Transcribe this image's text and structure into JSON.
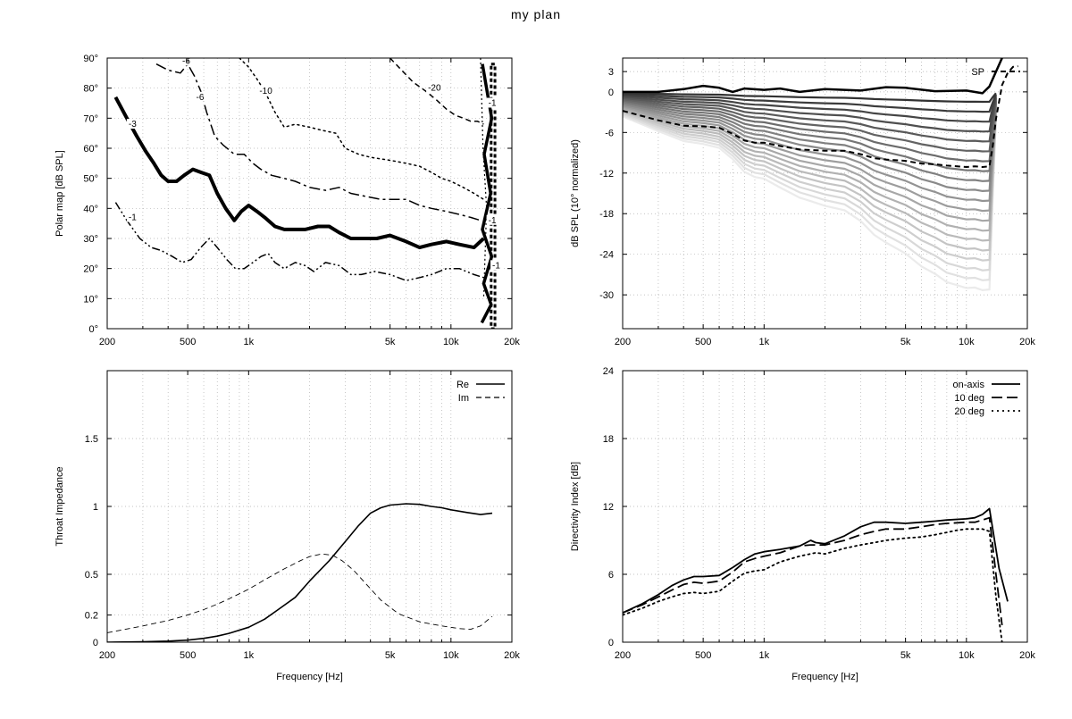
{
  "title": "my plan",
  "chart_data": [
    {
      "id": "polar",
      "type": "contour",
      "ylabel": "Polar map [dB SPL]",
      "xlabel": "",
      "xscale": "log",
      "xlim": [
        200,
        20000
      ],
      "ylim": [
        0,
        90
      ],
      "xticks": [
        {
          "v": 200,
          "label": "200"
        },
        {
          "v": 500,
          "label": "500"
        },
        {
          "v": 1000,
          "label": "1k"
        },
        {
          "v": 5000,
          "label": "5k"
        },
        {
          "v": 10000,
          "label": "10k"
        },
        {
          "v": 20000,
          "label": "20k"
        }
      ],
      "yticks": [
        {
          "v": 0,
          "label": "0°"
        },
        {
          "v": 10,
          "label": "10°"
        },
        {
          "v": 20,
          "label": "20°"
        },
        {
          "v": 30,
          "label": "30°"
        },
        {
          "v": 40,
          "label": "40°"
        },
        {
          "v": 50,
          "label": "50°"
        },
        {
          "v": 60,
          "label": "60°"
        },
        {
          "v": 70,
          "label": "70°"
        },
        {
          "v": 80,
          "label": "80°"
        },
        {
          "v": 90,
          "label": "90°"
        }
      ],
      "grid": true,
      "series": [
        {
          "name": "-1",
          "style": "dashdotdot",
          "width": 1.5,
          "x": [
            220,
            250,
            290,
            330,
            370,
            420,
            470,
            520,
            580,
            640,
            700,
            780,
            860,
            950,
            1050,
            1150,
            1250,
            1350,
            1500,
            1700,
            1900,
            2100,
            2400,
            2800,
            3200,
            3600,
            4200,
            5000,
            6000,
            7000,
            8000,
            9500,
            11000,
            13000,
            14500
          ],
          "y": [
            42,
            36,
            30,
            27,
            26,
            24,
            22,
            23,
            27,
            30,
            27,
            23,
            20,
            20,
            22,
            24,
            25,
            22,
            20,
            22,
            21,
            19,
            22,
            21,
            18,
            18,
            19,
            18,
            16,
            17,
            18,
            20,
            20,
            18,
            17
          ]
        },
        {
          "name": "-3",
          "style": "solid",
          "width": 4,
          "x": [
            220,
            250,
            280,
            310,
            340,
            370,
            400,
            440,
            480,
            530,
            580,
            640,
            700,
            770,
            850,
            920,
            1000,
            1100,
            1200,
            1350,
            1500,
            1700,
            1900,
            2200,
            2500,
            2800,
            3200,
            3700,
            4300,
            5000,
            6000,
            7000,
            8000,
            9500,
            11000,
            13000,
            14500
          ],
          "y": [
            77,
            70,
            64,
            59,
            55,
            51,
            49,
            49,
            51,
            53,
            52,
            51,
            45,
            40,
            36,
            39,
            41,
            39,
            37,
            34,
            33,
            33,
            33,
            34,
            34,
            32,
            30,
            30,
            30,
            31,
            29,
            27,
            28,
            29,
            28,
            27,
            30
          ]
        },
        {
          "name": "-6",
          "style": "dashdot",
          "width": 1.5,
          "x": [
            350,
            400,
            460,
            500,
            540,
            580,
            620,
            680,
            750,
            850,
            950,
            1050,
            1150,
            1300,
            1500,
            1700,
            2000,
            2400,
            2800,
            3200,
            3800,
            4500,
            5200,
            6000,
            7000,
            8000,
            9500,
            11000,
            12500,
            14000
          ],
          "y": [
            88,
            86,
            85,
            88,
            84,
            79,
            72,
            64,
            61,
            58,
            58,
            55,
            53,
            51,
            50,
            49,
            47,
            46,
            47,
            45,
            44,
            43,
            43,
            43,
            41,
            40,
            39,
            38,
            37,
            36
          ]
        },
        {
          "name": "-10",
          "style": "dotted",
          "width": 1.5,
          "x": [
            900,
            1000,
            1100,
            1200,
            1350,
            1500,
            1700,
            2000,
            2300,
            2700,
            3000,
            3500,
            4000,
            5000,
            6000,
            7000,
            8000,
            9000,
            10000,
            11500,
            13000,
            14500
          ],
          "y": [
            90,
            87,
            83,
            79,
            72,
            67,
            68,
            67,
            66,
            65,
            60,
            58,
            57,
            56,
            55,
            54,
            52,
            50,
            49,
            47,
            45,
            43
          ]
        },
        {
          "name": "-20",
          "style": "dashed",
          "width": 1.5,
          "x": [
            5000,
            5700,
            6500,
            7500,
            8500,
            9500,
            10500,
            11500,
            12500,
            13500,
            14500
          ],
          "y": [
            90,
            86,
            82,
            79,
            76,
            73,
            71,
            70,
            69,
            69,
            68
          ]
        }
      ],
      "contour_labels": [
        {
          "text": "-1",
          "x": 255,
          "y": 37
        },
        {
          "text": "-3",
          "x": 255,
          "y": 68
        },
        {
          "text": "-6",
          "x": 470,
          "y": 89
        },
        {
          "text": "-6",
          "x": 550,
          "y": 77
        },
        {
          "text": "-10",
          "x": 1130,
          "y": 79
        },
        {
          "text": "-20",
          "x": 7700,
          "y": 80
        },
        {
          "text": "-1",
          "x": 15300,
          "y": 75
        },
        {
          "text": "-1",
          "x": 15300,
          "y": 36
        },
        {
          "text": "-1",
          "x": 16000,
          "y": 21
        }
      ]
    },
    {
      "id": "spl",
      "type": "line",
      "ylabel": "dB SPL (10° normalized)",
      "xscale": "log",
      "xlim": [
        200,
        20000
      ],
      "ylim": [
        -35,
        5
      ],
      "xticks": [
        {
          "v": 200,
          "label": "200"
        },
        {
          "v": 500,
          "label": "500"
        },
        {
          "v": 1000,
          "label": "1k"
        },
        {
          "v": 5000,
          "label": "5k"
        },
        {
          "v": 10000,
          "label": "10k"
        },
        {
          "v": 20000,
          "label": "20k"
        }
      ],
      "yticks": [
        {
          "v": 3,
          "label": "3"
        },
        {
          "v": 0,
          "label": "0"
        },
        {
          "v": -6,
          "label": "-6"
        },
        {
          "v": -12,
          "label": "-12"
        },
        {
          "v": -18,
          "label": "-18"
        },
        {
          "v": -24,
          "label": "-24"
        },
        {
          "v": -30,
          "label": "-30"
        }
      ],
      "grid": true,
      "legend": {
        "position": "top-right",
        "entries": [
          "SP"
        ]
      },
      "fan_curve_count": 20,
      "series": [
        {
          "name": "SP",
          "style": "dashed",
          "width": 2,
          "x": [
            200,
            300,
            400,
            500,
            600,
            700,
            800,
            900,
            1000,
            1200,
            1500,
            2000,
            2500,
            3000,
            3500,
            4000,
            5000,
            6000,
            7000,
            8000,
            9000,
            10000,
            11000,
            12000,
            13000,
            13500,
            14000,
            15000,
            16000,
            17000,
            18000
          ],
          "y": [
            -2.8,
            -4.2,
            -5.0,
            -5.1,
            -5.3,
            -6.2,
            -7.2,
            -7.5,
            -7.5,
            -8.0,
            -8.5,
            -8.7,
            -8.7,
            -9.2,
            -9.8,
            -10.0,
            -10.2,
            -10.6,
            -10.7,
            -10.9,
            -11.0,
            -11.1,
            -11.0,
            -11.1,
            -11.0,
            -8.0,
            -4.0,
            1.0,
            2.8,
            3.7,
            3.8
          ]
        },
        {
          "name": "on-axis",
          "style": "solid",
          "width": 2.5,
          "x": [
            200,
            300,
            400,
            500,
            600,
            700,
            800,
            1000,
            1200,
            1500,
            2000,
            3000,
            4000,
            5000,
            7000,
            10000,
            12000,
            13000,
            14000,
            15000,
            16000
          ],
          "y": [
            0,
            0,
            0.4,
            0.9,
            0.6,
            0,
            0.5,
            0.3,
            0.5,
            0,
            0.4,
            0.2,
            0.7,
            0.6,
            0.1,
            0.2,
            -0.2,
            0.8,
            3,
            5,
            6
          ]
        }
      ]
    },
    {
      "id": "impedance",
      "type": "line",
      "ylabel": "Throat Impedance",
      "xlabel": "Frequency [Hz]",
      "xscale": "log",
      "xlim": [
        200,
        20000
      ],
      "ylim": [
        0,
        2
      ],
      "xticks": [
        {
          "v": 200,
          "label": "200"
        },
        {
          "v": 500,
          "label": "500"
        },
        {
          "v": 1000,
          "label": "1k"
        },
        {
          "v": 5000,
          "label": "5k"
        },
        {
          "v": 10000,
          "label": "10k"
        },
        {
          "v": 20000,
          "label": "20k"
        }
      ],
      "yticks": [
        {
          "v": 0,
          "label": "0"
        },
        {
          "v": 0.2,
          "label": "0.2"
        },
        {
          "v": 0.5,
          "label": "0.5"
        },
        {
          "v": 1,
          "label": "1"
        },
        {
          "v": 1.5,
          "label": "1.5"
        }
      ],
      "grid": true,
      "legend": {
        "position": "top-right",
        "entries": [
          "Re",
          "Im"
        ]
      },
      "series": [
        {
          "name": "Re",
          "style": "solid",
          "width": 1.6,
          "x": [
            200,
            300,
            400,
            500,
            600,
            700,
            800,
            1000,
            1200,
            1400,
            1700,
            2000,
            2500,
            3000,
            3500,
            4000,
            4500,
            5000,
            6000,
            7000,
            8000,
            9000,
            10000,
            12000,
            14000,
            16000
          ],
          "y": [
            0,
            0.003,
            0.008,
            0.015,
            0.028,
            0.045,
            0.065,
            0.11,
            0.17,
            0.24,
            0.33,
            0.45,
            0.6,
            0.74,
            0.86,
            0.95,
            0.99,
            1.01,
            1.02,
            1.015,
            1.0,
            0.99,
            0.975,
            0.955,
            0.94,
            0.95
          ]
        },
        {
          "name": "Im",
          "style": "dashed",
          "width": 0.9,
          "x": [
            200,
            300,
            400,
            500,
            600,
            700,
            800,
            1000,
            1200,
            1500,
            1800,
            2000,
            2300,
            2600,
            2900,
            3300,
            3800,
            4500,
            5500,
            7000,
            9000,
            11000,
            12500,
            14000,
            16000
          ],
          "y": [
            0.07,
            0.12,
            0.16,
            0.2,
            0.24,
            0.28,
            0.32,
            0.39,
            0.46,
            0.54,
            0.6,
            0.63,
            0.65,
            0.64,
            0.6,
            0.53,
            0.43,
            0.31,
            0.21,
            0.15,
            0.12,
            0.1,
            0.095,
            0.12,
            0.19
          ]
        }
      ]
    },
    {
      "id": "di",
      "type": "line",
      "ylabel": "Directivity Index [dB]",
      "xlabel": "Frequency [Hz]",
      "xscale": "log",
      "xlim": [
        200,
        20000
      ],
      "ylim": [
        0,
        24
      ],
      "xticks": [
        {
          "v": 200,
          "label": "200"
        },
        {
          "v": 500,
          "label": "500"
        },
        {
          "v": 1000,
          "label": "1k"
        },
        {
          "v": 5000,
          "label": "5k"
        },
        {
          "v": 10000,
          "label": "10k"
        },
        {
          "v": 20000,
          "label": "20k"
        }
      ],
      "yticks": [
        {
          "v": 0,
          "label": "0"
        },
        {
          "v": 6,
          "label": "6"
        },
        {
          "v": 12,
          "label": "12"
        },
        {
          "v": 18,
          "label": "18"
        },
        {
          "v": 24,
          "label": "24"
        }
      ],
      "grid": true,
      "legend": {
        "position": "top-right",
        "entries": [
          "on-axis",
          "10 deg",
          "20 deg"
        ]
      },
      "series": [
        {
          "name": "on-axis",
          "style": "solid",
          "width": 1.8,
          "x": [
            200,
            250,
            300,
            350,
            400,
            450,
            500,
            600,
            700,
            800,
            900,
            1000,
            1200,
            1500,
            1700,
            1800,
            2000,
            2500,
            3000,
            3500,
            4000,
            5000,
            6000,
            7000,
            8000,
            10000,
            11000,
            12000,
            13000,
            14500,
            16000
          ],
          "y": [
            2.6,
            3.4,
            4.2,
            5.0,
            5.5,
            5.8,
            5.8,
            5.9,
            6.6,
            7.3,
            7.8,
            8.0,
            8.2,
            8.5,
            9.0,
            8.8,
            8.7,
            9.4,
            10.2,
            10.6,
            10.6,
            10.5,
            10.6,
            10.7,
            10.8,
            10.9,
            11.0,
            11.3,
            11.8,
            6.5,
            3.6
          ]
        },
        {
          "name": "10 deg",
          "style": "longdash",
          "width": 1.8,
          "x": [
            200,
            250,
            300,
            350,
            400,
            450,
            500,
            600,
            700,
            800,
            900,
            1000,
            1200,
            1500,
            1700,
            2000,
            2500,
            3000,
            3500,
            4000,
            5000,
            6000,
            7000,
            8000,
            10000,
            11000,
            12000,
            13000,
            14000,
            15000
          ],
          "y": [
            2.6,
            3.3,
            4.0,
            4.6,
            5.1,
            5.3,
            5.2,
            5.4,
            6.2,
            7.1,
            7.4,
            7.6,
            7.9,
            8.5,
            8.6,
            8.6,
            9.0,
            9.5,
            9.8,
            10.0,
            10.0,
            10.2,
            10.4,
            10.5,
            10.6,
            10.6,
            10.8,
            11.0,
            6.0,
            1.5
          ]
        },
        {
          "name": "20 deg",
          "style": "dotted",
          "width": 1.8,
          "x": [
            200,
            250,
            300,
            350,
            400,
            450,
            500,
            600,
            700,
            800,
            900,
            1000,
            1200,
            1500,
            1800,
            2000,
            2500,
            3000,
            3500,
            4000,
            5000,
            6000,
            7000,
            8000,
            9000,
            10000,
            11000,
            12000,
            13000,
            14000,
            15000
          ],
          "y": [
            2.4,
            3.0,
            3.6,
            4.0,
            4.3,
            4.4,
            4.3,
            4.5,
            5.4,
            6.1,
            6.3,
            6.4,
            7.1,
            7.6,
            7.9,
            7.8,
            8.3,
            8.6,
            8.8,
            9.0,
            9.2,
            9.3,
            9.5,
            9.7,
            9.9,
            10.0,
            10.0,
            10.0,
            9.8,
            4.0,
            0
          ]
        }
      ]
    }
  ]
}
